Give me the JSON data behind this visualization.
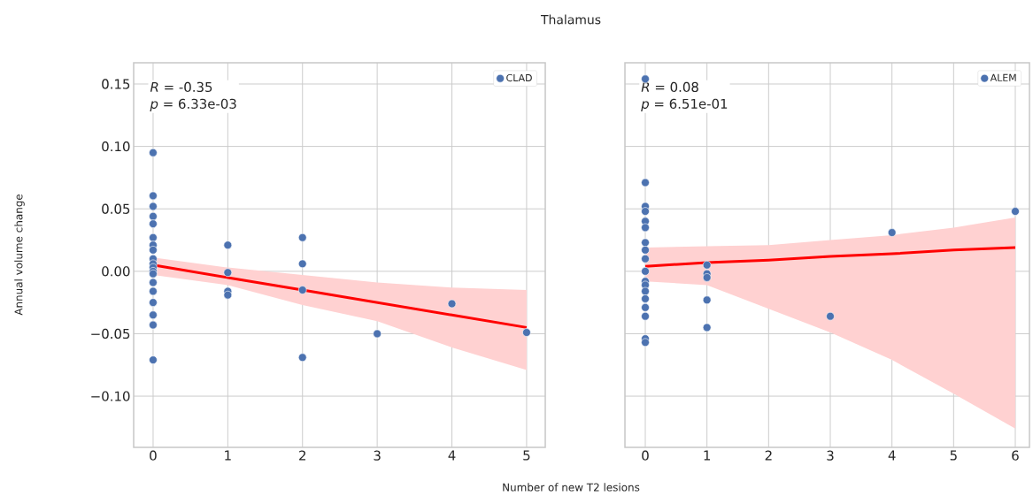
{
  "chart_data": [
    {
      "type": "scatter",
      "title": "Thalamus",
      "xlabel": "Number of new T2 lesions",
      "ylabel": "Annual volume change",
      "annotations": [
        "*R* = -0.35",
        "*p* = 6.33e-03"
      ],
      "xlim": [
        -0.26,
        5.25
      ],
      "ylim": [
        -0.141,
        0.167
      ],
      "xticks": [
        0,
        1,
        2,
        3,
        4,
        5
      ],
      "yticks": [
        {
          "value": -0.1,
          "label": "−0.10"
        },
        {
          "value": -0.05,
          "label": "−0.05"
        },
        {
          "value": 0,
          "label": "0.00"
        },
        {
          "value": 0.05,
          "label": "0.05"
        },
        {
          "value": 0.1,
          "label": "0.10"
        },
        {
          "value": 0.15,
          "label": "0.15"
        }
      ],
      "grid": true,
      "legend": "top right",
      "marker": "circle",
      "series": [
        {
          "name": "CLAD",
          "color": "#4c72b0",
          "x": [
            0,
            0,
            0,
            0,
            0,
            0,
            0,
            0,
            0,
            0,
            0,
            0,
            0,
            0,
            0,
            0,
            0,
            0,
            0,
            1,
            1,
            1,
            1,
            2,
            2,
            2,
            2,
            3,
            4,
            5
          ],
          "values": [
            0.095,
            0.0605,
            0.052,
            0.044,
            0.038,
            0.027,
            0.021,
            0.017,
            0.01,
            0.006,
            0.003,
            0.0,
            -0.002,
            -0.009,
            -0.016,
            -0.025,
            -0.035,
            -0.043,
            -0.071,
            0.021,
            -0.001,
            -0.016,
            -0.019,
            0.027,
            0.006,
            -0.015,
            -0.069,
            -0.05,
            -0.026,
            -0.049
          ]
        },
        {
          "type": "line",
          "marker": "none",
          "color": "#ff0000",
          "line_style": "solid",
          "x": [
            0,
            1,
            2,
            3,
            4,
            5
          ],
          "values": [
            0.005,
            -0.005,
            -0.015,
            -0.025,
            -0.035,
            -0.045
          ],
          "lower": [
            -0.003,
            -0.011,
            -0.027,
            -0.04,
            -0.061,
            -0.079
          ],
          "upper": [
            0.011,
            0.003,
            -0.003,
            -0.009,
            -0.013,
            -0.015
          ]
        }
      ]
    },
    {
      "type": "scatter",
      "annotations": [
        "*R* = 0.08",
        "*p* = 6.51e-01"
      ],
      "xlim": [
        -0.33,
        6.23
      ],
      "ylim": [
        -0.141,
        0.167
      ],
      "xticks": [
        0,
        1,
        2,
        3,
        4,
        5,
        6
      ],
      "yticks": [
        {
          "value": -0.1,
          "label": null
        },
        {
          "value": -0.05,
          "label": null
        },
        {
          "value": 0,
          "label": null
        },
        {
          "value": 0.05,
          "label": null
        },
        {
          "value": 0.1,
          "label": null
        },
        {
          "value": 0.15,
          "label": null
        }
      ],
      "tick_labels": "x",
      "grid": true,
      "legend": "top right",
      "marker": "circle",
      "series": [
        {
          "name": "ALEM",
          "color": "#4c72b0",
          "x": [
            0,
            0,
            0,
            0,
            0,
            0,
            0,
            0,
            0,
            0,
            0,
            0,
            0,
            0,
            0,
            0,
            0,
            0,
            1,
            1,
            1,
            1,
            1,
            3,
            4,
            6
          ],
          "values": [
            0.154,
            0.071,
            0.052,
            0.048,
            0.04,
            0.035,
            0.023,
            0.017,
            0.01,
            0.0,
            -0.008,
            -0.011,
            -0.016,
            -0.022,
            -0.029,
            -0.036,
            -0.054,
            -0.057,
            0.005,
            -0.002,
            -0.005,
            -0.023,
            -0.045,
            -0.036,
            0.031,
            0.048
          ]
        },
        {
          "type": "line",
          "marker": "none",
          "color": "#ff0000",
          "line_style": "solid",
          "x": [
            0,
            1,
            2,
            3,
            4,
            5,
            6
          ],
          "values": [
            0.004,
            0.007,
            0.009,
            0.012,
            0.014,
            0.017,
            0.019
          ],
          "lower": [
            -0.008,
            -0.011,
            -0.03,
            -0.049,
            -0.071,
            -0.098,
            -0.126
          ],
          "upper": [
            0.019,
            0.02,
            0.021,
            0.025,
            0.029,
            0.035,
            0.043
          ]
        }
      ]
    }
  ]
}
